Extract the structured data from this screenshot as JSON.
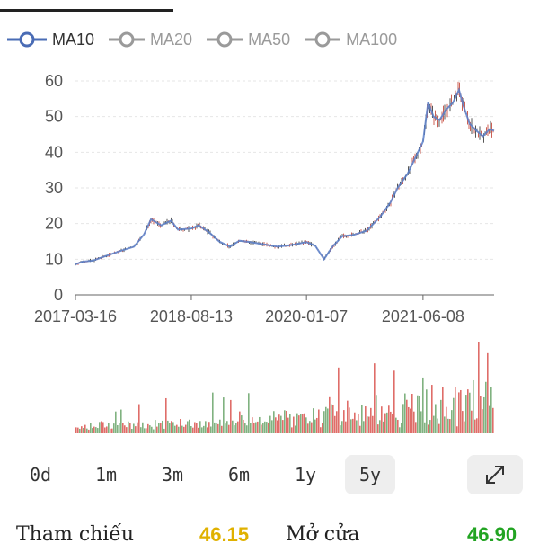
{
  "legend": [
    {
      "label": "MA10",
      "color": "#4a6cb5",
      "active": true
    },
    {
      "label": "MA20",
      "color": "#9a9a9a",
      "active": false
    },
    {
      "label": "MA50",
      "color": "#9a9a9a",
      "active": false
    },
    {
      "label": "MA100",
      "color": "#9a9a9a",
      "active": false
    }
  ],
  "chart_data": {
    "type": "line",
    "x_ticks": [
      "2017-03-16",
      "2018-08-13",
      "2020-01-07",
      "2021-06-08"
    ],
    "y_ticks": [
      "0",
      "10",
      "20",
      "30",
      "40",
      "50",
      "60"
    ],
    "ylim": [
      0,
      60
    ],
    "grid": true,
    "series": [
      {
        "name": "MA10",
        "color": "#5b7fc9",
        "points": [
          [
            "2017-03-16",
            8.6
          ],
          [
            "2017-04-15",
            9.3
          ],
          [
            "2017-06-01",
            9.6
          ],
          [
            "2017-08-01",
            11.0
          ],
          [
            "2017-10-01",
            12.3
          ],
          [
            "2017-12-01",
            13.5
          ],
          [
            "2018-01-15",
            17.0
          ],
          [
            "2018-02-15",
            21.2
          ],
          [
            "2018-04-01",
            19.5
          ],
          [
            "2018-05-15",
            20.8
          ],
          [
            "2018-06-15",
            18.3
          ],
          [
            "2018-08-13",
            18.6
          ],
          [
            "2018-09-15",
            19.5
          ],
          [
            "2018-11-01",
            17.5
          ],
          [
            "2018-12-15",
            15.0
          ],
          [
            "2019-02-01",
            13.5
          ],
          [
            "2019-03-15",
            15.2
          ],
          [
            "2019-05-01",
            14.8
          ],
          [
            "2019-07-01",
            14.2
          ],
          [
            "2019-09-01",
            13.5
          ],
          [
            "2019-11-01",
            14.0
          ],
          [
            "2020-01-07",
            14.8
          ],
          [
            "2020-02-15",
            13.8
          ],
          [
            "2020-03-25",
            10.0
          ],
          [
            "2020-05-01",
            13.5
          ],
          [
            "2020-06-15",
            16.5
          ],
          [
            "2020-08-01",
            16.8
          ],
          [
            "2020-10-01",
            18.0
          ],
          [
            "2020-12-01",
            22.0
          ],
          [
            "2021-01-15",
            26.0
          ],
          [
            "2021-02-15",
            30.0
          ],
          [
            "2021-04-01",
            34.0
          ],
          [
            "2021-05-01",
            38.0
          ],
          [
            "2021-06-08",
            43.0
          ],
          [
            "2021-07-01",
            54.0
          ],
          [
            "2021-07-25",
            50.0
          ],
          [
            "2021-08-20",
            49.0
          ],
          [
            "2021-09-20",
            52.0
          ],
          [
            "2021-10-20",
            54.0
          ],
          [
            "2021-11-15",
            57.5
          ],
          [
            "2021-12-05",
            53.0
          ],
          [
            "2022-01-01",
            48.0
          ],
          [
            "2022-02-01",
            46.0
          ],
          [
            "2022-03-01",
            44.5
          ],
          [
            "2022-04-01",
            46.5
          ],
          [
            "2022-04-20",
            46.0
          ]
        ]
      }
    ],
    "volume_colors": [
      "#d9534f",
      "#6aa56a"
    ]
  },
  "periods": [
    "0d",
    "1m",
    "3m",
    "6m",
    "1y",
    "5y"
  ],
  "selected_period": "5y",
  "expand_icon": "expand-arrows-icon",
  "stats": {
    "ref_label": "Tham chiếu",
    "ref_value": "46.15",
    "ref_color": "#e0b100",
    "open_label": "Mở cửa",
    "open_value": "46.90",
    "open_color": "#22a422"
  }
}
